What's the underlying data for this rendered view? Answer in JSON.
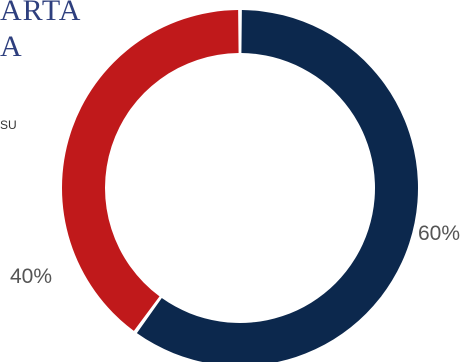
{
  "header": {
    "title_fragment_1": "ARTA",
    "title_fragment_2": "A",
    "subtitle_fragment": "SU"
  },
  "chart_data": {
    "type": "pie",
    "variant": "donut",
    "slices": [
      {
        "label": "60%",
        "value": 60,
        "color": "#0c284d"
      },
      {
        "label": "40%",
        "value": 40,
        "color": "#c0191b"
      }
    ],
    "start": "top",
    "direction": "clockwise",
    "legend": "none"
  }
}
